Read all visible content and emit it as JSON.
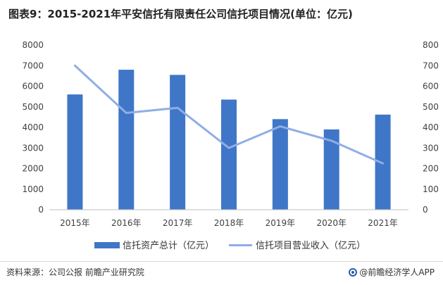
{
  "title": "图表9：2015-2021年平安信托有限责任公司信托项目情况(单位：亿元)",
  "footer": {
    "source": "资料来源：公司公报 前瞻产业研究院",
    "brand": "@前瞻经济学人APP"
  },
  "chart_data": {
    "type": "bar+line",
    "categories": [
      "2015年",
      "2016年",
      "2017年",
      "2018年",
      "2019年",
      "2020年",
      "2021年"
    ],
    "series": [
      {
        "name": "信托资产总计（亿元）",
        "type": "bar",
        "axis": "left",
        "color": "#3f76c8",
        "values": [
          5600,
          6800,
          6550,
          5350,
          4400,
          3900,
          4620
        ]
      },
      {
        "name": "信托项目营业收入（亿元）",
        "type": "line",
        "axis": "right",
        "color": "#8faee6",
        "values": [
          700,
          470,
          495,
          300,
          405,
          335,
          225
        ]
      }
    ],
    "y_left": {
      "ylim": [
        0,
        8000
      ],
      "ticks": [
        "0",
        "1000",
        "2000",
        "3000",
        "4000",
        "5000",
        "6000",
        "7000",
        "8000"
      ]
    },
    "y_right": {
      "ylim": [
        0,
        800
      ],
      "ticks": [
        "0",
        "100",
        "200",
        "300",
        "400",
        "500",
        "600",
        "700",
        "800"
      ]
    },
    "grid": false,
    "legend_position": "bottom"
  }
}
